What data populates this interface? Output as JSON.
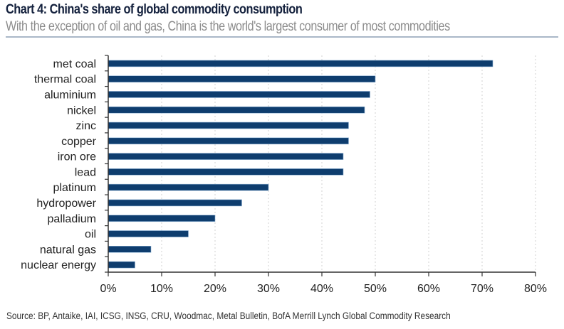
{
  "header": {
    "title": "Chart 4: China's share of global commodity consumption",
    "subtitle": "With the exception of oil and gas, China is the world's largest consumer of most commodities"
  },
  "footer": {
    "source": "Source: BP, Antaike, IAI, ICSG, INSG, CRU, Woodmac, Metal Bulletin, BofA Merrill Lynch Global Commodity Research"
  },
  "colors": {
    "bar": "#0e3d6e",
    "grid": "#d0d0d0",
    "axis": "#333333"
  },
  "chart_data": {
    "type": "bar",
    "orientation": "horizontal",
    "title": "Chart 4: China's share of global commodity consumption",
    "subtitle": "With the exception of oil and gas, China is the world's largest consumer of most commodities",
    "categories": [
      "met coal",
      "thermal coal",
      "aluminium",
      "nickel",
      "zinc",
      "copper",
      "iron ore",
      "lead",
      "platinum",
      "hydropower",
      "palladium",
      "oil",
      "natural gas",
      "nuclear energy"
    ],
    "values": [
      72,
      50,
      49,
      48,
      45,
      45,
      44,
      44,
      30,
      25,
      20,
      15,
      8,
      5
    ],
    "unit": "%",
    "xlabel": "",
    "ylabel": "",
    "xlim": [
      0,
      80
    ],
    "xticks": [
      0,
      10,
      20,
      30,
      40,
      50,
      60,
      70,
      80
    ],
    "xtick_labels": [
      "0%",
      "10%",
      "20%",
      "30%",
      "40%",
      "50%",
      "60%",
      "70%",
      "80%"
    ],
    "grid": "vertical dotted",
    "legend": "none"
  }
}
